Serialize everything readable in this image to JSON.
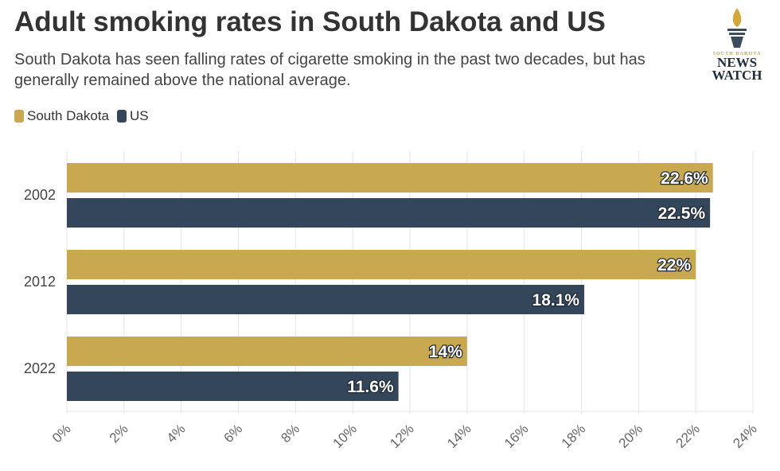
{
  "chart_data": {
    "type": "bar",
    "orientation": "horizontal",
    "title": "Adult smoking rates in South Dakota and US",
    "subtitle": "South Dakota has seen falling rates of cigarette smoking in the past two decades, but has generally remained above the national average.",
    "categories": [
      "2002",
      "2012",
      "2022"
    ],
    "series": [
      {
        "name": "South Dakota",
        "color": "#c9a94f",
        "values": [
          22.6,
          22,
          14
        ],
        "labels": [
          "22.6%",
          "22%",
          "14%"
        ]
      },
      {
        "name": "US",
        "color": "#34465a",
        "values": [
          22.5,
          18.1,
          11.6
        ],
        "labels": [
          "22.5%",
          "18.1%",
          "11.6%"
        ]
      }
    ],
    "xlim": [
      0,
      24
    ],
    "xticks": [
      "0%",
      "2%",
      "4%",
      "6%",
      "8%",
      "10%",
      "12%",
      "14%",
      "16%",
      "18%",
      "20%",
      "22%",
      "24%"
    ],
    "grid": true,
    "legend": "top-left"
  },
  "logo": {
    "line1": "SOUTH DAKOTA",
    "line2": "NEWS",
    "line3": "WATCH"
  }
}
